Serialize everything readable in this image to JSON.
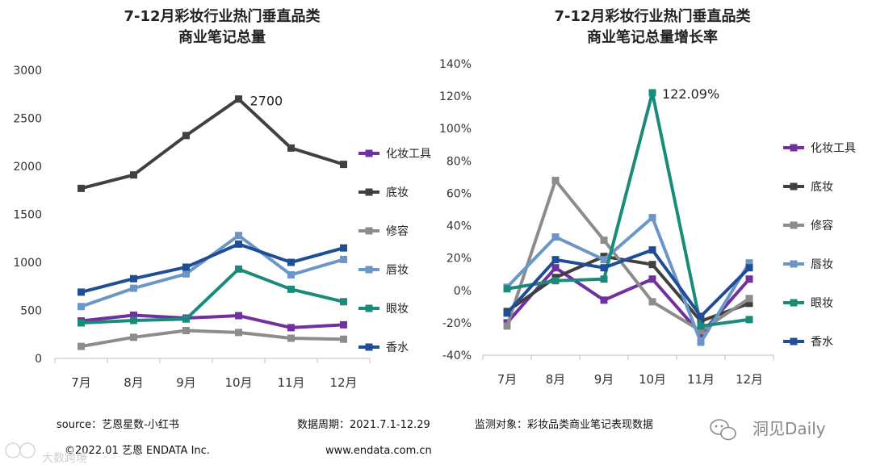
{
  "chart_data": [
    {
      "type": "line",
      "title": [
        "7-12月彩妆行业热门垂直品类",
        "商业笔记总量"
      ],
      "categories": [
        "7月",
        "8月",
        "9月",
        "10月",
        "11月",
        "12月"
      ],
      "ylim": [
        0,
        3000
      ],
      "yticks": [
        "3000",
        "2500",
        "2000",
        "1500",
        "1000",
        "500",
        "0"
      ],
      "series": [
        {
          "name": "化妆工具",
          "color": "#7030a0",
          "values": [
            390,
            450,
            420,
            445,
            320,
            350
          ]
        },
        {
          "name": "底妆",
          "color": "#404040",
          "values": [
            1770,
            1910,
            2320,
            2700,
            2190,
            2020
          ]
        },
        {
          "name": "修容",
          "color": "#8c8c8c",
          "values": [
            125,
            220,
            290,
            270,
            210,
            200
          ]
        },
        {
          "name": "唇妆",
          "color": "#6b96c8",
          "values": [
            540,
            730,
            880,
            1280,
            870,
            1030
          ]
        },
        {
          "name": "眼妆",
          "color": "#1a8a7a",
          "values": [
            370,
            395,
            410,
            930,
            720,
            590
          ]
        },
        {
          "name": "香水",
          "color": "#1f4e96",
          "values": [
            690,
            830,
            950,
            1190,
            1000,
            1150
          ]
        }
      ],
      "annotation": {
        "text": "2700",
        "series": "底妆",
        "index": 3
      }
    },
    {
      "type": "line",
      "title": [
        "7-12月彩妆行业热门垂直品类",
        "商业笔记总量增长率"
      ],
      "categories": [
        "7月",
        "8月",
        "9月",
        "10月",
        "11月",
        "12月"
      ],
      "ylim": [
        -40,
        140
      ],
      "yticks": [
        "140%",
        "120%",
        "100%",
        "80%",
        "60%",
        "40%",
        "20%",
        "0%",
        "-20%",
        "-40%"
      ],
      "series": [
        {
          "name": "化妆工具",
          "color": "#7030a0",
          "values": [
            -20,
            14,
            -6,
            7,
            -27,
            7
          ]
        },
        {
          "name": "底妆",
          "color": "#404040",
          "values": [
            -13,
            8,
            21,
            16,
            -19,
            -8
          ]
        },
        {
          "name": "修容",
          "color": "#8c8c8c",
          "values": [
            -22,
            68,
            31,
            -7,
            -25,
            -5
          ]
        },
        {
          "name": "唇妆",
          "color": "#6b96c8",
          "values": [
            2,
            33,
            19,
            45,
            -32,
            17
          ]
        },
        {
          "name": "眼妆",
          "color": "#1a8a7a",
          "values": [
            1,
            6,
            7,
            122.09,
            -22,
            -18
          ]
        },
        {
          "name": "香水",
          "color": "#1f4e96",
          "values": [
            -14,
            19,
            14,
            25,
            -16,
            14
          ]
        }
      ],
      "annotation": {
        "text": "122.09%",
        "series": "眼妆",
        "index": 3
      }
    }
  ],
  "footer": {
    "source": "source：艺恩星数-小红书",
    "period": "数据周期：2021.7.1-12.29",
    "target": "监测对象：彩妆品类商业笔记表现数据",
    "copyright": "©2022.01 艺恩 ENDATA Inc.",
    "website": "www.endata.com.cn"
  },
  "watermarks": {
    "wechat": "洞见Daily",
    "corner": "大数跨境"
  }
}
